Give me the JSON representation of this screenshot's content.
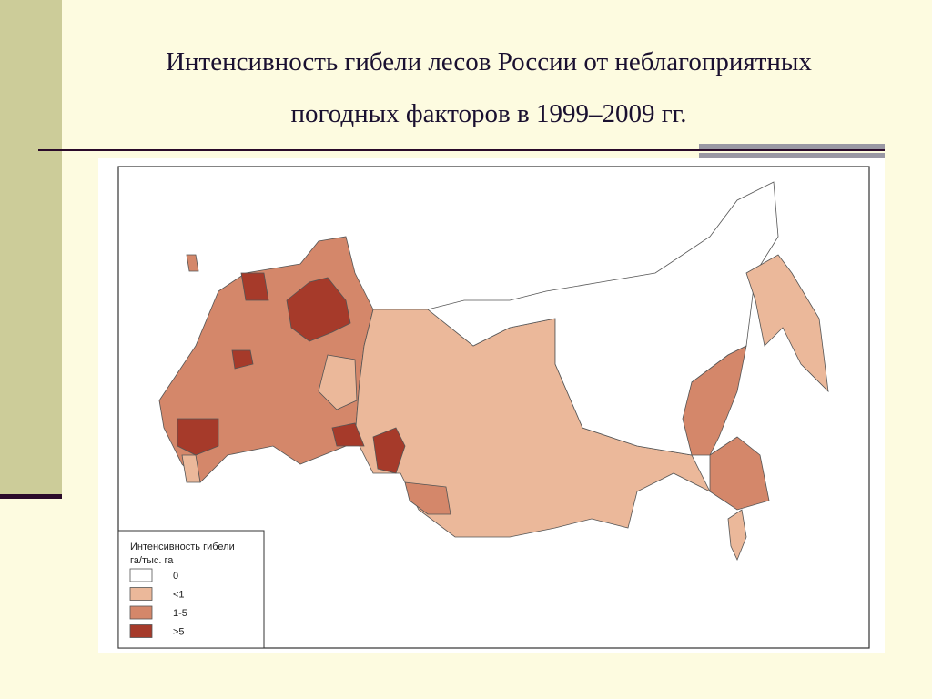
{
  "title": [
    "Интенсивность гибели лесов России от неблагоприятных",
    "погодных факторов в 1999–2009 гг."
  ],
  "legend": {
    "title": [
      "Интенсивность гибели",
      "га/тыс. га"
    ],
    "items": [
      {
        "label": "0",
        "color": "#ffffff"
      },
      {
        "label": "<1",
        "color": "#ebb89a"
      },
      {
        "label": "1-5",
        "color": "#d4876a"
      },
      {
        "label": ">5",
        "color": "#a63a2a"
      }
    ]
  }
}
